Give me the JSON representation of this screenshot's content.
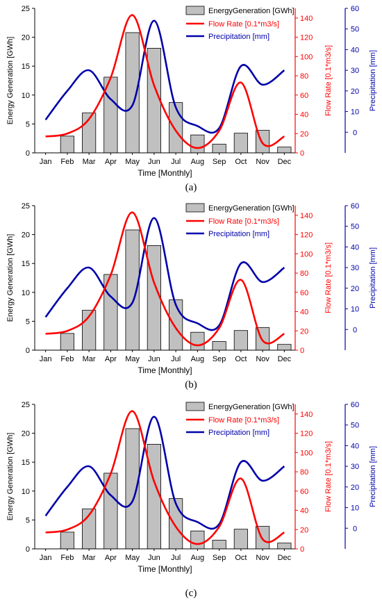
{
  "chart_data": [
    {
      "panel_label": "(a)",
      "type": "bar",
      "categories": [
        "Jan",
        "Feb",
        "Mar",
        "Apr",
        "May",
        "Jun",
        "Jul",
        "Aug",
        "Sep",
        "Oct",
        "Nov",
        "Dec"
      ],
      "xlabel": "Time [Monthly]",
      "y1label": "Energy Generation [GWh]",
      "y2label": "Flow Rate [0.1*m3/s]",
      "y3label": "Precipitation [mm]",
      "y1lim": [
        0,
        25
      ],
      "y1ticks": [
        0,
        5,
        10,
        15,
        20,
        25
      ],
      "y2lim": [
        0,
        150
      ],
      "y2ticks": [
        0,
        20,
        40,
        60,
        80,
        100,
        120,
        140
      ],
      "y3lim": [
        -10,
        60
      ],
      "y3ticks": [
        0,
        10,
        20,
        30,
        40,
        50,
        60
      ],
      "legend_position": "top-right",
      "series": [
        {
          "name": "EnergyGeneration [GWh]",
          "type": "bar",
          "axis": "y1",
          "color": "#c0c0c0",
          "values": [
            0,
            2.9,
            6.9,
            13.1,
            20.8,
            18.1,
            8.7,
            3.1,
            1.5,
            3.4,
            3.9,
            1.0
          ]
        },
        {
          "name": "Flow Rate [0.1*m3/s]",
          "type": "line",
          "axis": "y2",
          "color": "#ff0000",
          "values": [
            17,
            20,
            35,
            78,
            143,
            70,
            23,
            5,
            23,
            73,
            10,
            17
          ]
        },
        {
          "name": "Precipitation [mm]",
          "type": "line",
          "axis": "y3",
          "color": "#0000aa",
          "values": [
            6,
            20,
            30,
            16,
            13,
            54,
            12,
            3,
            2,
            32,
            23,
            30
          ]
        }
      ]
    },
    {
      "panel_label": "(b)",
      "type": "bar",
      "categories": [
        "Jan",
        "Feb",
        "Mar",
        "Apr",
        "May",
        "Jun",
        "Jul",
        "Aug",
        "Sep",
        "Oct",
        "Nov",
        "Dec"
      ],
      "xlabel": "Time [Monthly]",
      "y1label": "Energy Generation [GWh]",
      "y2label": "Flow Rate [0.1*m3/s]",
      "y3label": "Precipitation [mm]",
      "y1lim": [
        0,
        25
      ],
      "y1ticks": [
        0,
        5,
        10,
        15,
        20,
        25
      ],
      "y2lim": [
        0,
        150
      ],
      "y2ticks": [
        0,
        20,
        40,
        60,
        80,
        100,
        120,
        140
      ],
      "y3lim": [
        -10,
        60
      ],
      "y3ticks": [
        0,
        10,
        20,
        30,
        40,
        50,
        60
      ],
      "legend_position": "top-right",
      "series": [
        {
          "name": "EnergyGeneration [GWh]",
          "type": "bar",
          "axis": "y1",
          "color": "#c0c0c0",
          "values": [
            0,
            2.9,
            6.9,
            13.1,
            20.8,
            18.1,
            8.7,
            3.1,
            1.5,
            3.4,
            3.9,
            1.0
          ]
        },
        {
          "name": "Flow Rate [0.1*m3/s]",
          "type": "line",
          "axis": "y2",
          "color": "#ff0000",
          "values": [
            17,
            20,
            35,
            78,
            143,
            70,
            23,
            5,
            23,
            73,
            10,
            17
          ]
        },
        {
          "name": "Precipitation [mm]",
          "type": "line",
          "axis": "y3",
          "color": "#0000aa",
          "values": [
            6,
            20,
            30,
            16,
            13,
            54,
            12,
            3,
            2,
            32,
            23,
            30
          ]
        }
      ]
    },
    {
      "panel_label": "(c)",
      "type": "bar",
      "categories": [
        "Jan",
        "Feb",
        "Mar",
        "Apr",
        "May",
        "Jun",
        "Jul",
        "Aug",
        "Sep",
        "Oct",
        "Nov",
        "Dec"
      ],
      "xlabel": "Time [Monthly]",
      "y1label": "Energy Generation [GWh]",
      "y2label": "Flow Rate [0.1*m3/s]",
      "y3label": "Precipitation [mm]",
      "y1lim": [
        0,
        25
      ],
      "y1ticks": [
        0,
        5,
        10,
        15,
        20,
        25
      ],
      "y2lim": [
        0,
        150
      ],
      "y2ticks": [
        0,
        20,
        40,
        60,
        80,
        100,
        120,
        140
      ],
      "y3lim": [
        -10,
        60
      ],
      "y3ticks": [
        0,
        10,
        20,
        30,
        40,
        50,
        60
      ],
      "legend_position": "top-right",
      "series": [
        {
          "name": "EnergyGeneration [GWh]",
          "type": "bar",
          "axis": "y1",
          "color": "#c0c0c0",
          "values": [
            0,
            2.9,
            6.9,
            13.1,
            20.8,
            18.1,
            8.7,
            3.1,
            1.5,
            3.4,
            3.9,
            1.0
          ]
        },
        {
          "name": "Flow Rate [0.1*m3/s]",
          "type": "line",
          "axis": "y2",
          "color": "#ff0000",
          "values": [
            17,
            20,
            35,
            78,
            143,
            70,
            23,
            5,
            23,
            73,
            10,
            17
          ]
        },
        {
          "name": "Precipitation [mm]",
          "type": "line",
          "axis": "y3",
          "color": "#0000aa",
          "values": [
            6,
            20,
            30,
            16,
            13,
            54,
            12,
            3,
            2,
            32,
            23,
            30
          ]
        }
      ]
    }
  ]
}
